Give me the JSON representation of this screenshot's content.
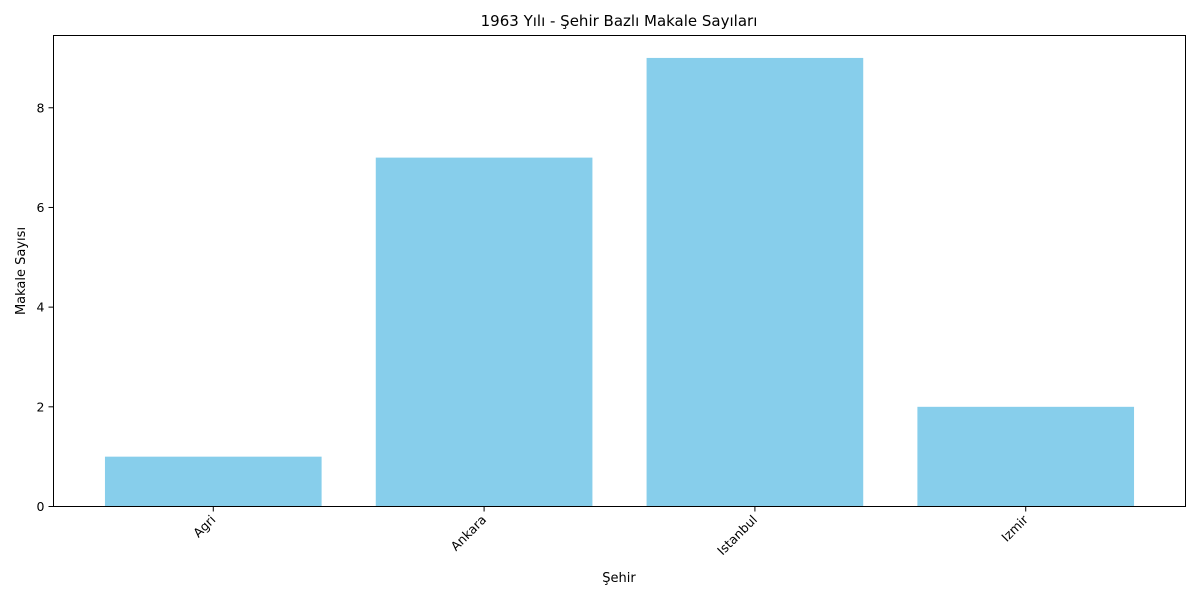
{
  "chart_data": {
    "type": "bar",
    "title": "1963 Yılı - Şehir Bazlı Makale Sayıları",
    "xlabel": "Şehir",
    "ylabel": "Makale Sayısı",
    "categories": [
      "Agri",
      "Ankara",
      "Istanbul",
      "Izmir"
    ],
    "values": [
      1,
      7,
      9,
      2
    ],
    "ylim": [
      0,
      9.45
    ],
    "yticks": [
      0,
      2,
      4,
      6,
      8
    ],
    "grid": false,
    "bar_color": "#87CEEB"
  }
}
